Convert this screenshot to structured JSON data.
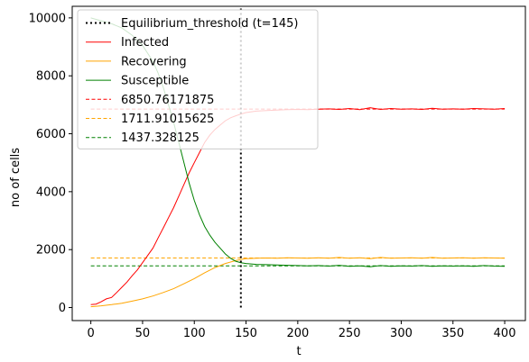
{
  "chart_data": {
    "type": "line",
    "title": "",
    "xlabel": "t",
    "ylabel": "no of cells",
    "xlim": [
      -18,
      420
    ],
    "ylim": [
      -450,
      10400
    ],
    "xticks": [
      0,
      50,
      100,
      150,
      200,
      250,
      300,
      350,
      400
    ],
    "yticks": [
      0,
      2000,
      4000,
      6000,
      8000,
      10000
    ],
    "grid": false,
    "legend_position": "upper left",
    "series": [
      {
        "name": "Infected",
        "color": "#ff0000",
        "style": "solid",
        "points": [
          [
            0,
            100
          ],
          [
            5,
            120
          ],
          [
            10,
            200
          ],
          [
            15,
            300
          ],
          [
            20,
            350
          ],
          [
            25,
            520
          ],
          [
            30,
            700
          ],
          [
            35,
            880
          ],
          [
            40,
            1100
          ],
          [
            45,
            1300
          ],
          [
            50,
            1550
          ],
          [
            55,
            1800
          ],
          [
            60,
            2050
          ],
          [
            65,
            2400
          ],
          [
            70,
            2750
          ],
          [
            75,
            3100
          ],
          [
            80,
            3450
          ],
          [
            85,
            3850
          ],
          [
            90,
            4250
          ],
          [
            95,
            4650
          ],
          [
            100,
            5000
          ],
          [
            105,
            5350
          ],
          [
            110,
            5700
          ],
          [
            115,
            5950
          ],
          [
            120,
            6150
          ],
          [
            125,
            6300
          ],
          [
            130,
            6450
          ],
          [
            135,
            6550
          ],
          [
            140,
            6620
          ],
          [
            145,
            6680
          ],
          [
            150,
            6730
          ],
          [
            160,
            6780
          ],
          [
            170,
            6800
          ],
          [
            180,
            6820
          ],
          [
            190,
            6830
          ],
          [
            200,
            6840
          ],
          [
            210,
            6830
          ],
          [
            220,
            6850
          ],
          [
            230,
            6860
          ],
          [
            240,
            6840
          ],
          [
            250,
            6870
          ],
          [
            260,
            6830
          ],
          [
            270,
            6900
          ],
          [
            280,
            6840
          ],
          [
            290,
            6870
          ],
          [
            300,
            6850
          ],
          [
            310,
            6860
          ],
          [
            320,
            6840
          ],
          [
            330,
            6880
          ],
          [
            340,
            6850
          ],
          [
            350,
            6860
          ],
          [
            360,
            6850
          ],
          [
            370,
            6870
          ],
          [
            380,
            6860
          ],
          [
            390,
            6850
          ],
          [
            400,
            6870
          ]
        ]
      },
      {
        "name": "Recovering",
        "color": "#ffa500",
        "style": "solid",
        "points": [
          [
            0,
            30
          ],
          [
            10,
            60
          ],
          [
            20,
            100
          ],
          [
            30,
            150
          ],
          [
            40,
            220
          ],
          [
            50,
            300
          ],
          [
            60,
            400
          ],
          [
            70,
            520
          ],
          [
            80,
            650
          ],
          [
            90,
            820
          ],
          [
            100,
            1000
          ],
          [
            110,
            1200
          ],
          [
            120,
            1380
          ],
          [
            130,
            1520
          ],
          [
            140,
            1620
          ],
          [
            145,
            1660
          ],
          [
            150,
            1690
          ],
          [
            160,
            1700
          ],
          [
            170,
            1710
          ],
          [
            180,
            1700
          ],
          [
            190,
            1720
          ],
          [
            200,
            1710
          ],
          [
            210,
            1700
          ],
          [
            220,
            1720
          ],
          [
            230,
            1700
          ],
          [
            240,
            1730
          ],
          [
            250,
            1700
          ],
          [
            260,
            1720
          ],
          [
            270,
            1690
          ],
          [
            280,
            1730
          ],
          [
            290,
            1700
          ],
          [
            300,
            1710
          ],
          [
            310,
            1720
          ],
          [
            320,
            1700
          ],
          [
            330,
            1730
          ],
          [
            340,
            1700
          ],
          [
            350,
            1710
          ],
          [
            360,
            1720
          ],
          [
            370,
            1700
          ],
          [
            380,
            1720
          ],
          [
            390,
            1710
          ],
          [
            400,
            1700
          ]
        ]
      },
      {
        "name": "Susceptible",
        "color": "#008000",
        "style": "solid",
        "points": [
          [
            0,
            10000
          ],
          [
            5,
            9950
          ],
          [
            10,
            9900
          ],
          [
            15,
            9850
          ],
          [
            20,
            9800
          ],
          [
            30,
            9650
          ],
          [
            40,
            9400
          ],
          [
            50,
            9050
          ],
          [
            60,
            8500
          ],
          [
            65,
            8100
          ],
          [
            70,
            7600
          ],
          [
            75,
            7000
          ],
          [
            80,
            6400
          ],
          [
            85,
            5700
          ],
          [
            90,
            5000
          ],
          [
            95,
            4300
          ],
          [
            100,
            3700
          ],
          [
            105,
            3200
          ],
          [
            110,
            2800
          ],
          [
            115,
            2500
          ],
          [
            120,
            2250
          ],
          [
            125,
            2050
          ],
          [
            130,
            1850
          ],
          [
            135,
            1700
          ],
          [
            140,
            1600
          ],
          [
            145,
            1550
          ],
          [
            150,
            1520
          ],
          [
            160,
            1490
          ],
          [
            170,
            1480
          ],
          [
            180,
            1470
          ],
          [
            190,
            1460
          ],
          [
            200,
            1450
          ],
          [
            210,
            1440
          ],
          [
            220,
            1450
          ],
          [
            230,
            1430
          ],
          [
            240,
            1460
          ],
          [
            250,
            1420
          ],
          [
            260,
            1440
          ],
          [
            270,
            1410
          ],
          [
            280,
            1450
          ],
          [
            290,
            1420
          ],
          [
            300,
            1440
          ],
          [
            310,
            1430
          ],
          [
            320,
            1450
          ],
          [
            330,
            1420
          ],
          [
            340,
            1440
          ],
          [
            350,
            1430
          ],
          [
            360,
            1440
          ],
          [
            370,
            1420
          ],
          [
            380,
            1450
          ],
          [
            390,
            1430
          ],
          [
            400,
            1420
          ]
        ]
      }
    ],
    "hlines": [
      {
        "label": "6850.76171875",
        "y": 6850.76171875,
        "color": "#ff0000",
        "xmin": 0,
        "xmax": 400
      },
      {
        "label": "1711.91015625",
        "y": 1711.91015625,
        "color": "#ffa500",
        "xmin": 0,
        "xmax": 400
      },
      {
        "label": "1437.328125",
        "y": 1437.328125,
        "color": "#008000",
        "xmin": 0,
        "xmax": 400
      }
    ],
    "vline": {
      "label": "Equilibrium_threshold (t=145)",
      "x": 145,
      "ymin": 0,
      "ymax": 10400,
      "color": "#000000"
    },
    "legend": [
      {
        "label": "Equilibrium_threshold (t=145)",
        "color": "#000000",
        "style": "dotted"
      },
      {
        "label": "Infected",
        "color": "#ff0000",
        "style": "solid"
      },
      {
        "label": "Recovering",
        "color": "#ffa500",
        "style": "solid"
      },
      {
        "label": "Susceptible",
        "color": "#008000",
        "style": "solid"
      },
      {
        "label": "6850.76171875",
        "color": "#ff0000",
        "style": "dashed"
      },
      {
        "label": "1711.91015625",
        "color": "#ffa500",
        "style": "dashed"
      },
      {
        "label": "1437.328125",
        "color": "#008000",
        "style": "dashed"
      }
    ]
  }
}
